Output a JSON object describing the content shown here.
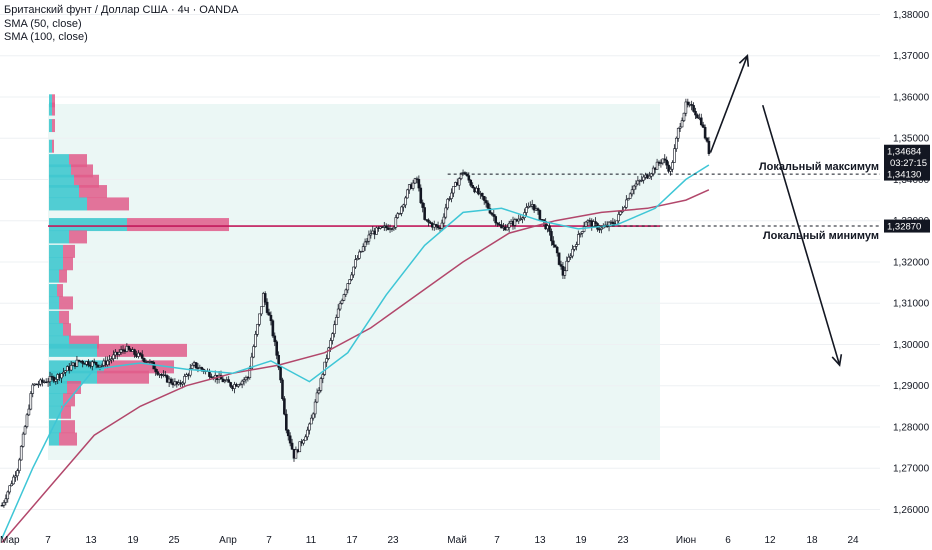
{
  "legend": {
    "symbol": "Британский фунт / Доллар США · 4ч · OANDA",
    "sma50": "SMA (50, close)",
    "sma100": "SMA (100, close)"
  },
  "colors": {
    "up": "#26a69a",
    "down": "#131722",
    "sma50": "#3ec6d6",
    "sma100": "#b2476b",
    "vp_up": "#40c8cf",
    "vp_down": "#e05c8a",
    "poc": "#c2185b",
    "value_area": "#e3f4f1"
  },
  "chart_data": {
    "type": "line",
    "title": "",
    "xlabel": "",
    "ylabel": "",
    "ylim": [
      1.2555,
      1.3835
    ],
    "y_ticks": [
      "1,38000",
      "1,37000",
      "1,36000",
      "1,35000",
      "1,34000",
      "1,33000",
      "1,32000",
      "1,31000",
      "1,30000",
      "1,29000",
      "1,28000",
      "1,27000",
      "1,26000"
    ],
    "x_ticks": [
      "Мар",
      "7",
      "13",
      "19",
      "25",
      "Апр",
      "7",
      "11",
      "17",
      "23",
      "Май",
      "7",
      "13",
      "19",
      "23",
      "Июн",
      "6",
      "12",
      "18",
      "24"
    ],
    "price_path": [
      {
        "t": 0,
        "v": 1.261
      },
      {
        "t": 2,
        "v": 1.27
      },
      {
        "t": 4,
        "v": 1.29
      },
      {
        "t": 7,
        "v": 1.292
      },
      {
        "t": 10,
        "v": 1.296
      },
      {
        "t": 13,
        "v": 1.295
      },
      {
        "t": 16,
        "v": 1.299
      },
      {
        "t": 19,
        "v": 1.296
      },
      {
        "t": 21,
        "v": 1.292
      },
      {
        "t": 23,
        "v": 1.29
      },
      {
        "t": 25,
        "v": 1.295
      },
      {
        "t": 28,
        "v": 1.292
      },
      {
        "t": 30,
        "v": 1.29
      },
      {
        "t": 32,
        "v": 1.292
      },
      {
        "t": 34,
        "v": 1.312
      },
      {
        "t": 35,
        "v": 1.305
      },
      {
        "t": 36,
        "v": 1.295
      },
      {
        "t": 37,
        "v": 1.28
      },
      {
        "t": 38,
        "v": 1.273
      },
      {
        "t": 40,
        "v": 1.28
      },
      {
        "t": 42,
        "v": 1.295
      },
      {
        "t": 44,
        "v": 1.31
      },
      {
        "t": 46,
        "v": 1.32
      },
      {
        "t": 48,
        "v": 1.327
      },
      {
        "t": 51,
        "v": 1.329
      },
      {
        "t": 53,
        "v": 1.338
      },
      {
        "t": 54,
        "v": 1.34
      },
      {
        "t": 55,
        "v": 1.33
      },
      {
        "t": 57,
        "v": 1.328
      },
      {
        "t": 58,
        "v": 1.335
      },
      {
        "t": 60,
        "v": 1.342
      },
      {
        "t": 61,
        "v": 1.339
      },
      {
        "t": 63,
        "v": 1.334
      },
      {
        "t": 65,
        "v": 1.328
      },
      {
        "t": 67,
        "v": 1.33
      },
      {
        "t": 69,
        "v": 1.334
      },
      {
        "t": 71,
        "v": 1.328
      },
      {
        "t": 72,
        "v": 1.323
      },
      {
        "t": 73,
        "v": 1.317
      },
      {
        "t": 74,
        "v": 1.322
      },
      {
        "t": 76,
        "v": 1.33
      },
      {
        "t": 78,
        "v": 1.328
      },
      {
        "t": 80,
        "v": 1.33
      },
      {
        "t": 82,
        "v": 1.338
      },
      {
        "t": 84,
        "v": 1.341
      },
      {
        "t": 86,
        "v": 1.345
      },
      {
        "t": 87,
        "v": 1.342
      },
      {
        "t": 88,
        "v": 1.352
      },
      {
        "t": 89,
        "v": 1.358
      },
      {
        "t": 90,
        "v": 1.357
      },
      {
        "t": 91,
        "v": 1.354
      },
      {
        "t": 92,
        "v": 1.3468
      }
    ],
    "sma50_path": [
      {
        "t": 0,
        "v": 1.253
      },
      {
        "t": 4,
        "v": 1.27
      },
      {
        "t": 8,
        "v": 1.285
      },
      {
        "t": 12,
        "v": 1.294
      },
      {
        "t": 18,
        "v": 1.2955
      },
      {
        "t": 24,
        "v": 1.294
      },
      {
        "t": 30,
        "v": 1.293
      },
      {
        "t": 35,
        "v": 1.296
      },
      {
        "t": 40,
        "v": 1.291
      },
      {
        "t": 45,
        "v": 1.298
      },
      {
        "t": 50,
        "v": 1.312
      },
      {
        "t": 55,
        "v": 1.324
      },
      {
        "t": 60,
        "v": 1.332
      },
      {
        "t": 65,
        "v": 1.333
      },
      {
        "t": 70,
        "v": 1.33
      },
      {
        "t": 75,
        "v": 1.328
      },
      {
        "t": 80,
        "v": 1.329
      },
      {
        "t": 85,
        "v": 1.333
      },
      {
        "t": 89,
        "v": 1.34
      },
      {
        "t": 92,
        "v": 1.3435
      }
    ],
    "sma100_path": [
      {
        "t": 0,
        "v": 1.252
      },
      {
        "t": 6,
        "v": 1.265
      },
      {
        "t": 12,
        "v": 1.278
      },
      {
        "t": 18,
        "v": 1.285
      },
      {
        "t": 24,
        "v": 1.29
      },
      {
        "t": 30,
        "v": 1.293
      },
      {
        "t": 36,
        "v": 1.295
      },
      {
        "t": 42,
        "v": 1.298
      },
      {
        "t": 48,
        "v": 1.304
      },
      {
        "t": 54,
        "v": 1.312
      },
      {
        "t": 60,
        "v": 1.32
      },
      {
        "t": 66,
        "v": 1.327
      },
      {
        "t": 72,
        "v": 1.33
      },
      {
        "t": 78,
        "v": 1.332
      },
      {
        "t": 84,
        "v": 1.333
      },
      {
        "t": 89,
        "v": 1.335
      },
      {
        "t": 92,
        "v": 1.3375
      }
    ],
    "volume_profile": [
      {
        "price": 1.359,
        "up": 3,
        "down": 3
      },
      {
        "price": 1.357,
        "up": 3,
        "down": 3
      },
      {
        "price": 1.353,
        "up": 3,
        "down": 3
      },
      {
        "price": 1.348,
        "up": 3,
        "down": 2
      },
      {
        "price": 1.3445,
        "up": 20,
        "down": 18
      },
      {
        "price": 1.342,
        "up": 22,
        "down": 22
      },
      {
        "price": 1.3395,
        "up": 25,
        "down": 25
      },
      {
        "price": 1.337,
        "up": 30,
        "down": 28
      },
      {
        "price": 1.334,
        "up": 38,
        "down": 42
      },
      {
        "price": 1.329,
        "up": 78,
        "down": 102
      },
      {
        "price": 1.326,
        "up": 20,
        "down": 18
      },
      {
        "price": 1.3225,
        "up": 14,
        "down": 12
      },
      {
        "price": 1.3195,
        "up": 14,
        "down": 10
      },
      {
        "price": 1.3165,
        "up": 10,
        "down": 8
      },
      {
        "price": 1.313,
        "up": 8,
        "down": 6
      },
      {
        "price": 1.31,
        "up": 10,
        "down": 14
      },
      {
        "price": 1.3065,
        "up": 10,
        "down": 10
      },
      {
        "price": 1.3035,
        "up": 14,
        "down": 8
      },
      {
        "price": 1.3005,
        "up": 20,
        "down": 30
      },
      {
        "price": 1.2985,
        "up": 48,
        "down": 90
      },
      {
        "price": 1.2945,
        "up": 55,
        "down": 70
      },
      {
        "price": 1.292,
        "up": 48,
        "down": 52
      },
      {
        "price": 1.2895,
        "up": 18,
        "down": 14
      },
      {
        "price": 1.2865,
        "up": 14,
        "down": 12
      },
      {
        "price": 1.2835,
        "up": 12,
        "down": 10
      },
      {
        "price": 1.28,
        "up": 12,
        "down": 14
      },
      {
        "price": 1.277,
        "up": 10,
        "down": 18
      }
    ],
    "local_max": {
      "label": "Локальный максимум",
      "value": 1.3413,
      "tag": "1,34130"
    },
    "local_min": {
      "label": "Локальный минимум",
      "value": 1.3287,
      "tag": "1,32870"
    },
    "last_price": {
      "value": 1.34684,
      "tag": "1,34684",
      "countdown": "03:27:15"
    },
    "arrows": [
      {
        "from": {
          "t": 92.2,
          "v": 1.3465
        },
        "to": {
          "t": 97,
          "v": 1.37
        }
      },
      {
        "from": {
          "t": 99,
          "v": 1.358
        },
        "to": {
          "t": 109,
          "v": 1.295
        }
      }
    ]
  }
}
